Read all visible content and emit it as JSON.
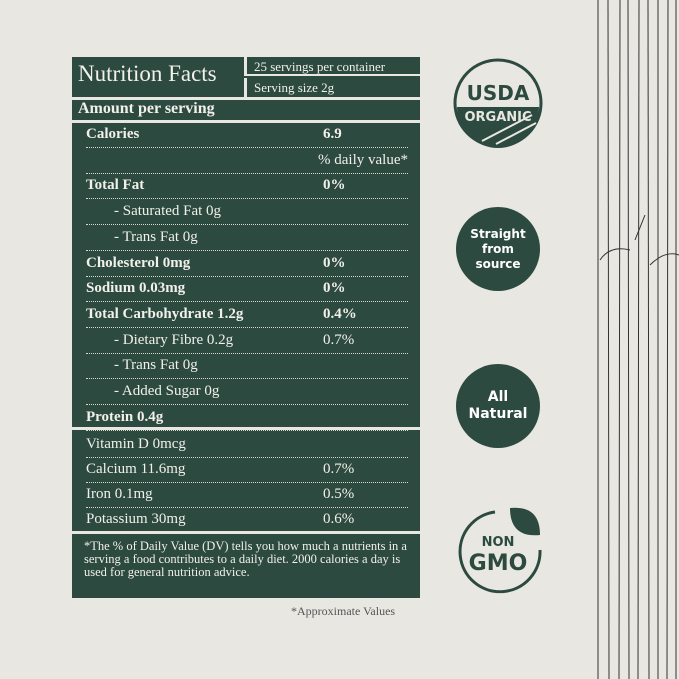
{
  "header": {
    "title": "Nutrition Facts",
    "servings": "25 servings per container",
    "serving_size": "Serving size 2g",
    "amount": "Amount per serving"
  },
  "rows": [
    {
      "label": "Calories",
      "value": "6.9",
      "bold": true
    },
    {
      "label": "",
      "value": "% daily value*"
    },
    {
      "label": "Total Fat",
      "value": "0%",
      "bold": true
    },
    {
      "label": "- Saturated Fat 0g",
      "value": "",
      "indent": true
    },
    {
      "label": "- Trans Fat 0g",
      "value": "",
      "indent": true
    },
    {
      "label": "Cholesterol 0mg",
      "value": "0%",
      "bold": true
    },
    {
      "label": "Sodium 0.03mg",
      "value": "0%",
      "bold": true
    },
    {
      "label": "Total Carbohydrate 1.2g",
      "value": "0.4%",
      "bold": true
    },
    {
      "label": "- Dietary Fibre 0.2g",
      "value": "0.7%",
      "indent": true
    },
    {
      "label": "- Trans Fat 0g",
      "value": "",
      "indent": true
    },
    {
      "label": "- Added Sugar 0g",
      "value": "",
      "indent": true
    },
    {
      "label": "Protein 0.4g",
      "value": "",
      "bold": true
    }
  ],
  "vitamins": [
    {
      "label": "Vitamin D 0mcg",
      "value": ""
    },
    {
      "label": "Calcium 11.6mg",
      "value": "0.7%"
    },
    {
      "label": "Iron 0.1mg",
      "value": "0.5%"
    },
    {
      "label": "Potassium 30mg",
      "value": "0.6%"
    }
  ],
  "footnote": "*The % of Daily Value (DV) tells you how much a nutrients in a serving a food contributes to a daily diet. 2000 calories a day is used for general nutrition advice.",
  "approx": "*Approximate Values",
  "badges": {
    "usda_top": "USDA",
    "usda_bottom": "ORGANIC",
    "source": [
      "Straight",
      "from",
      "source"
    ],
    "natural": [
      "All",
      "Natural"
    ],
    "non": "NON",
    "gmo": "GMO"
  },
  "colors": {
    "green": "#2c4a40",
    "background": "#e9e7e2"
  }
}
